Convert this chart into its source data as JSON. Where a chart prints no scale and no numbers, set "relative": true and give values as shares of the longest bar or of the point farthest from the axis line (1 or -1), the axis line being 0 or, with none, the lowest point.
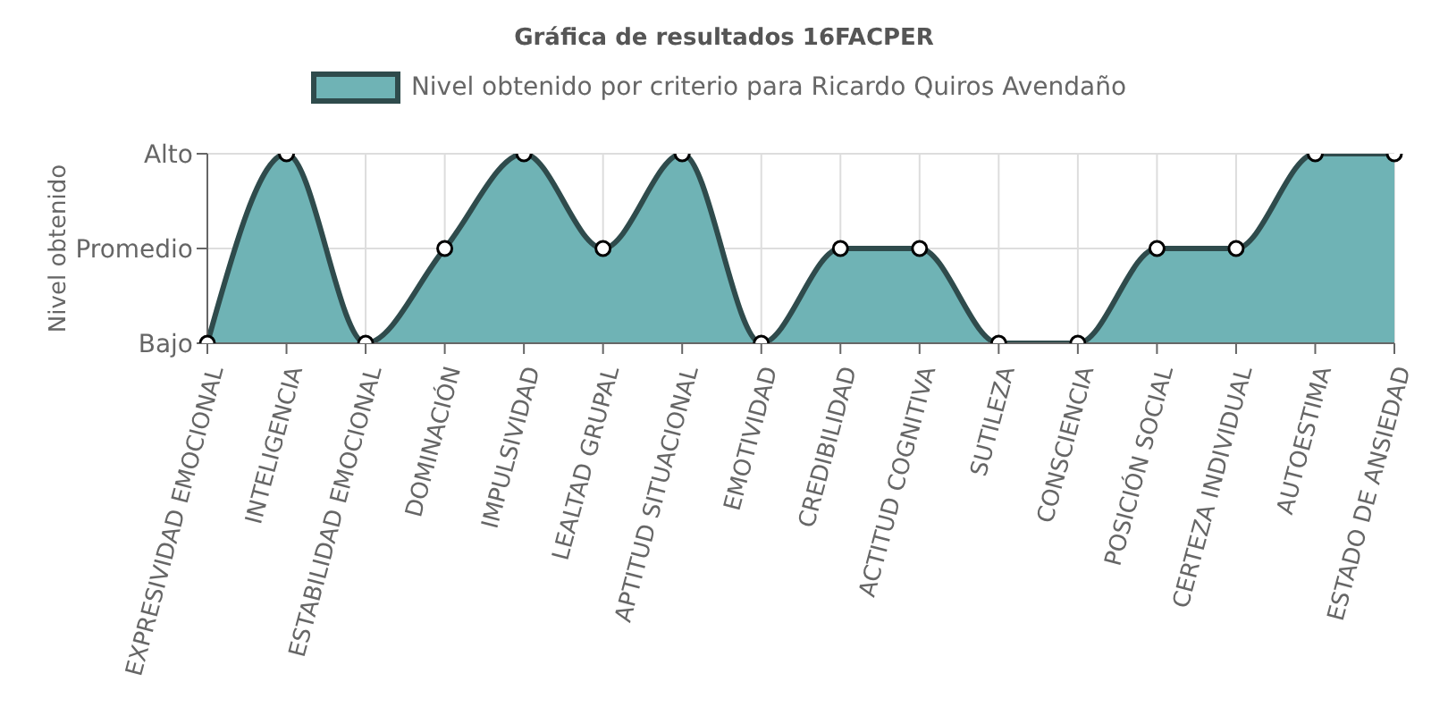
{
  "chart_data": {
    "type": "area",
    "title": "Gráfica de resultados 16FACPER",
    "ylabel": "Nivel obtenido",
    "relative": true,
    "categories": [
      "EXPRESIVIDAD EMOCIONAL",
      "INTELIGENCIA",
      "ESTABILIDAD EMOCIONAL",
      "DOMINACIÓN",
      "IMPULSIVIDAD",
      "LEALTAD GRUPAL",
      "APTITUD SITUACIONAL",
      "EMOTIVIDAD",
      "CREDIBILIDAD",
      "ACTITUD COGNITIVA",
      "SUTILEZA",
      "CONSCIENCIA",
      "POSICIÓN SOCIAL",
      "CERTEZA INDIVIDUAL",
      "AUTOESTIMA",
      "ESTADO DE ANSIEDAD"
    ],
    "series": [
      {
        "name": "Nivel obtenido por criterio para Ricardo Quiros Avendaño",
        "color": "#6fb3b5",
        "values": [
          0,
          1,
          0,
          0.5,
          1,
          0.5,
          1,
          0,
          0.5,
          0.5,
          0,
          0,
          0.5,
          0.5,
          1,
          1
        ]
      }
    ],
    "annotations": [
      "Bajo",
      "Promedio",
      "Alto"
    ],
    "grid": true,
    "legend": "top",
    "marker": "circle"
  }
}
